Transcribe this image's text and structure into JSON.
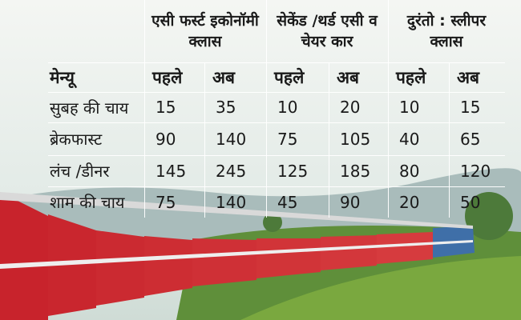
{
  "table": {
    "groups": [
      "एसी फर्स्ट इकोनॉमी क्लास",
      "सेकेंड /थर्ड एसी व चेयर कार",
      "दुरंतो : स्लीपर क्लास"
    ],
    "columns": [
      "मेन्यू",
      "पहले",
      "अब",
      "पहले",
      "अब",
      "पहले",
      "अब"
    ],
    "rows": [
      [
        "सुबह की चाय",
        15,
        35,
        10,
        20,
        10,
        15
      ],
      [
        "ब्रेकफास्ट",
        90,
        140,
        75,
        105,
        40,
        65
      ],
      [
        "लंच /डीनर",
        145,
        245,
        125,
        185,
        80,
        120
      ],
      [
        "शाम की चाय",
        75,
        140,
        45,
        90,
        20,
        50
      ]
    ]
  }
}
